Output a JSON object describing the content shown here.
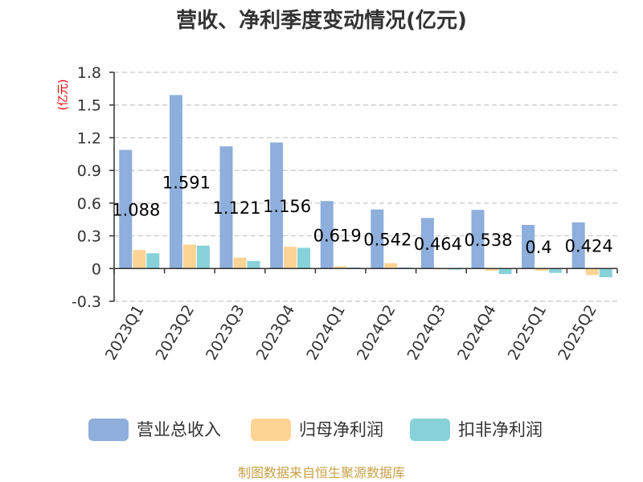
{
  "chart_data": {
    "type": "bar",
    "title": "营收、净利季度变动情况(亿元)",
    "unit_label": "(亿元)",
    "categories": [
      "2023Q1",
      "2023Q2",
      "2023Q3",
      "2023Q4",
      "2024Q1",
      "2024Q2",
      "2024Q3",
      "2024Q4",
      "2025Q1",
      "2025Q2"
    ],
    "series": [
      {
        "name": "营业总收入",
        "color": "#8eaedc",
        "values": [
          1.088,
          1.591,
          1.121,
          1.156,
          0.619,
          0.542,
          0.464,
          0.538,
          0.4,
          0.424
        ]
      },
      {
        "name": "归母净利润",
        "color": "#fdd494",
        "values": [
          0.17,
          0.22,
          0.1,
          0.2,
          0.02,
          0.05,
          -0.005,
          -0.02,
          -0.02,
          -0.06
        ]
      },
      {
        "name": "扣非净利润",
        "color": "#86d2d8",
        "values": [
          0.14,
          0.21,
          0.07,
          0.19,
          0.01,
          0.01,
          -0.01,
          -0.05,
          -0.04,
          -0.08
        ]
      }
    ],
    "data_labels": [
      "1.088",
      "1.591",
      "1.121",
      "1.156",
      "0.619",
      "0.542",
      "0.464",
      "0.538",
      "0.4",
      "0.424"
    ],
    "y_ticks": [
      "1.8",
      "1.5",
      "1.2",
      "0.9",
      "0.6",
      "0.3",
      "0",
      "-0.3"
    ],
    "ylim": [
      -0.3,
      1.8
    ],
    "grid": true,
    "legend_position": "bottom"
  },
  "source": "制图数据来自恒生聚源数据库"
}
